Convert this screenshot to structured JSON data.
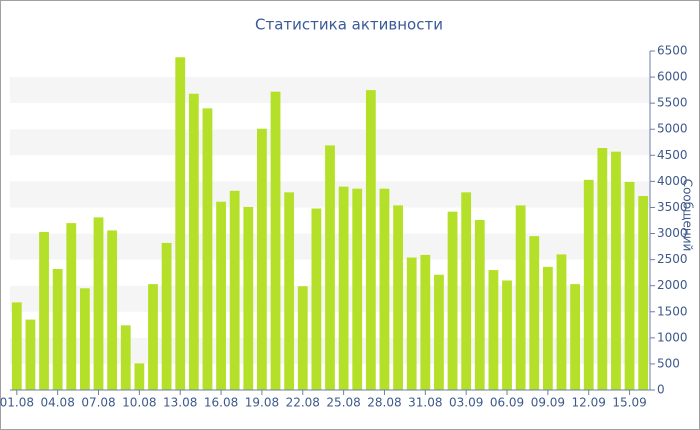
{
  "chart_data": {
    "type": "bar",
    "title": "Статистика активности",
    "y_axis_label": "Сообщений",
    "y_axis_side": "right",
    "categories": [
      "01.08",
      null,
      null,
      "04.08",
      null,
      null,
      "07.08",
      null,
      null,
      "10.08",
      null,
      null,
      "13.08",
      null,
      null,
      "16.08",
      null,
      null,
      "19.08",
      null,
      null,
      "22.08",
      null,
      null,
      "25.08",
      null,
      null,
      "28.08",
      null,
      null,
      "31.08",
      null,
      null,
      "03.09",
      null,
      null,
      "06.09",
      null,
      null,
      "09.09",
      null,
      null,
      "12.09",
      null,
      null,
      "15.09",
      null
    ],
    "values": [
      1680,
      1350,
      3030,
      2320,
      3200,
      1950,
      3310,
      3060,
      1240,
      510,
      2030,
      2820,
      6380,
      5680,
      5400,
      3610,
      3820,
      3510,
      5010,
      5720,
      3790,
      1990,
      3480,
      4690,
      3900,
      3860,
      5750,
      3860,
      3540,
      2540,
      2590,
      2210,
      3420,
      3790,
      3260,
      2300,
      2100,
      3540,
      2950,
      2360,
      2600,
      2030,
      4030,
      4640,
      4570,
      3990,
      3720
    ],
    "color": "#b5e02a",
    "ylim": [
      0,
      6500
    ],
    "yticks": [
      0,
      500,
      1000,
      1500,
      2000,
      2500,
      3000,
      3500,
      4000,
      4500,
      5000,
      5500,
      6000,
      6500
    ],
    "grid": true
  }
}
